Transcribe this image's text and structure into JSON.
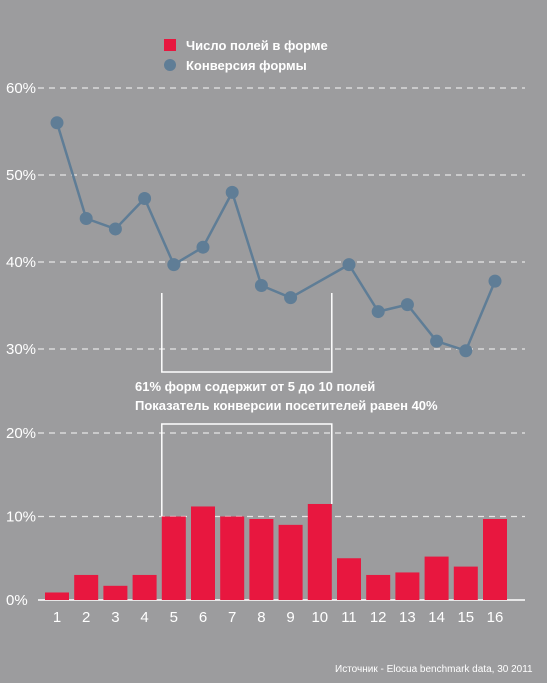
{
  "chart_data": {
    "type": "bar+line",
    "categories": [
      "1",
      "2",
      "3",
      "4",
      "5",
      "6",
      "7",
      "8",
      "9",
      "10",
      "11",
      "12",
      "13",
      "14",
      "15",
      "16"
    ],
    "y_ticks": [
      "0%",
      "10%",
      "20%",
      "30%",
      "40%",
      "50%",
      "60%"
    ],
    "ylim": [
      0,
      60
    ],
    "scale": "broken axis: 0–20% lower section, 30–60% upper section",
    "grid": true,
    "legend_position": "top",
    "series": [
      {
        "name": "Число полей в форме",
        "type": "bar",
        "color": "#e8173f",
        "values": [
          0.9,
          3.0,
          1.7,
          3.0,
          10.0,
          11.2,
          10.0,
          9.7,
          9.0,
          11.5,
          5.0,
          3.0,
          3.3,
          5.2,
          4.0,
          9.7
        ]
      },
      {
        "name": "Конверсия формы",
        "type": "line",
        "color": "#5f7d96",
        "values": [
          56.0,
          45.0,
          43.8,
          47.3,
          39.7,
          41.7,
          48.0,
          37.3,
          35.9,
          null,
          39.7,
          34.3,
          35.1,
          30.9,
          29.8,
          37.8
        ]
      }
    ],
    "annotation": {
      "line1": "61% форм содержит от 5 до 10 полей",
      "line2": "Показатель конверсии посетителей равен 40%",
      "range": [
        "5",
        "10"
      ]
    },
    "source": "Источник -  Elocua benchmark data, 30 2011"
  }
}
